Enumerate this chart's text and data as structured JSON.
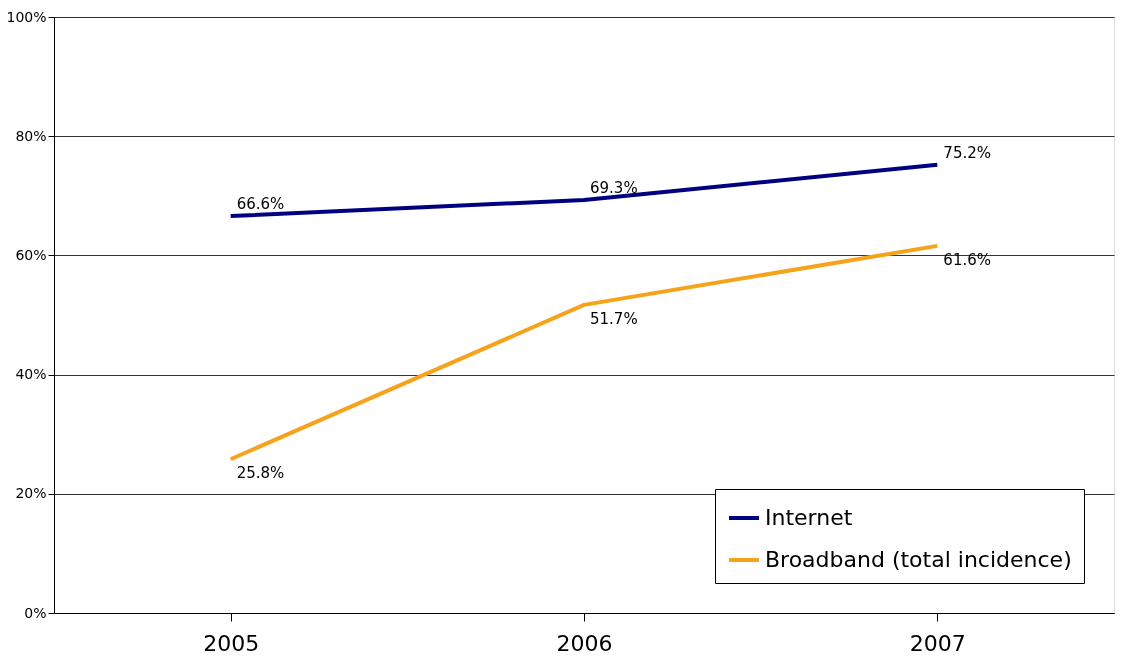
{
  "chart_data": {
    "type": "line",
    "categories": [
      "2005",
      "2006",
      "2007"
    ],
    "series": [
      {
        "name": "Internet",
        "color": "#000080",
        "values": [
          66.6,
          69.3,
          75.2
        ],
        "value_labels": [
          "66.6%",
          "69.3%",
          "75.2%"
        ]
      },
      {
        "name": "Broadband (total incidence)",
        "color": "#f7a21b",
        "values": [
          25.8,
          51.7,
          61.6
        ],
        "value_labels": [
          "25.8%",
          "51.7%",
          "61.6%"
        ]
      }
    ],
    "ylim": [
      0,
      100
    ],
    "yticks": [
      {
        "value": 0,
        "label": "0%"
      },
      {
        "value": 20,
        "label": "20%"
      },
      {
        "value": 40,
        "label": "40%"
      },
      {
        "value": 60,
        "label": "60%"
      },
      {
        "value": 80,
        "label": "80%"
      },
      {
        "value": 100,
        "label": "100%"
      }
    ],
    "grid": "y",
    "legend": "bottom right",
    "marker": "none",
    "line_style": "solid"
  }
}
